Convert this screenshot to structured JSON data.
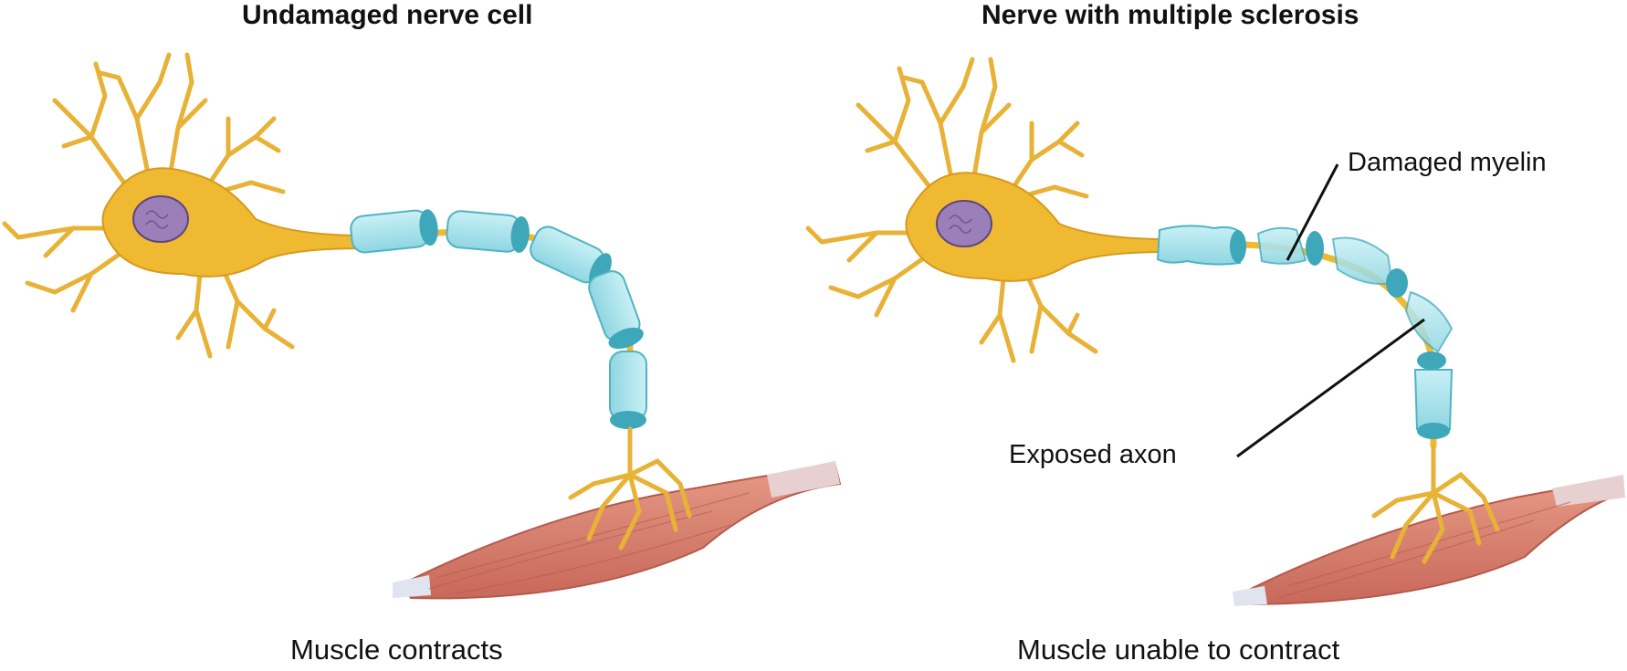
{
  "panels": {
    "left": {
      "title": "Undamaged nerve cell",
      "caption": "Muscle contracts"
    },
    "right": {
      "title": "Nerve with multiple sclerosis",
      "caption": "Muscle unable to contract",
      "callouts": {
        "damaged_myelin": "Damaged myelin",
        "exposed_axon": "Exposed axon"
      }
    }
  },
  "colors": {
    "neuron": "#f0b932",
    "neuron_edge": "#d69a1e",
    "nucleus": "#9b7fb8",
    "myelin": "#a9e3ec",
    "myelin_edge": "#4fb3c4",
    "muscle": "#d9826f",
    "tendon": "#dfe4ee"
  }
}
